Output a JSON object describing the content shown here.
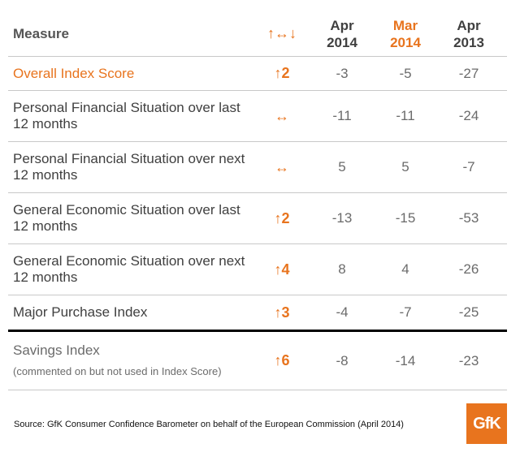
{
  "header": {
    "measure": "Measure",
    "change": "↑↔↓",
    "cols": [
      {
        "l1": "Apr",
        "l2": "2014"
      },
      {
        "l1": "Mar",
        "l2": "2014"
      },
      {
        "l1": "Apr",
        "l2": "2013"
      }
    ]
  },
  "rows": [
    {
      "measure": "Overall Index Score",
      "change": "↑2",
      "v": [
        "-3",
        "-5",
        "-27"
      ]
    },
    {
      "measure": "Personal Financial Situation over last 12 months",
      "change": "↔",
      "v": [
        "-11",
        "-11",
        "-24"
      ]
    },
    {
      "measure": "Personal Financial Situation over next 12 months",
      "change": "↔",
      "v": [
        "5",
        "5",
        "-7"
      ]
    },
    {
      "measure": "General Economic Situation over last 12 months",
      "change": "↑2",
      "v": [
        "-13",
        "-15",
        "-53"
      ]
    },
    {
      "measure": "General Economic Situation over next 12 months",
      "change": "↑4",
      "v": [
        "8",
        "4",
        "-26"
      ]
    },
    {
      "measure": "Major Purchase Index",
      "change": "↑3",
      "v": [
        "-4",
        "-7",
        "-25"
      ]
    },
    {
      "measure": "Savings Index",
      "sub": "(commented on but not used in Index Score)",
      "change": "↑6",
      "v": [
        "-8",
        "-14",
        "-23"
      ]
    }
  ],
  "source": "Source: GfK Consumer Confidence Barometer on behalf of the European Commission (April 2014)",
  "logo_text": "GfK",
  "colors": {
    "accent": "#e8741e",
    "text": "#404040"
  }
}
